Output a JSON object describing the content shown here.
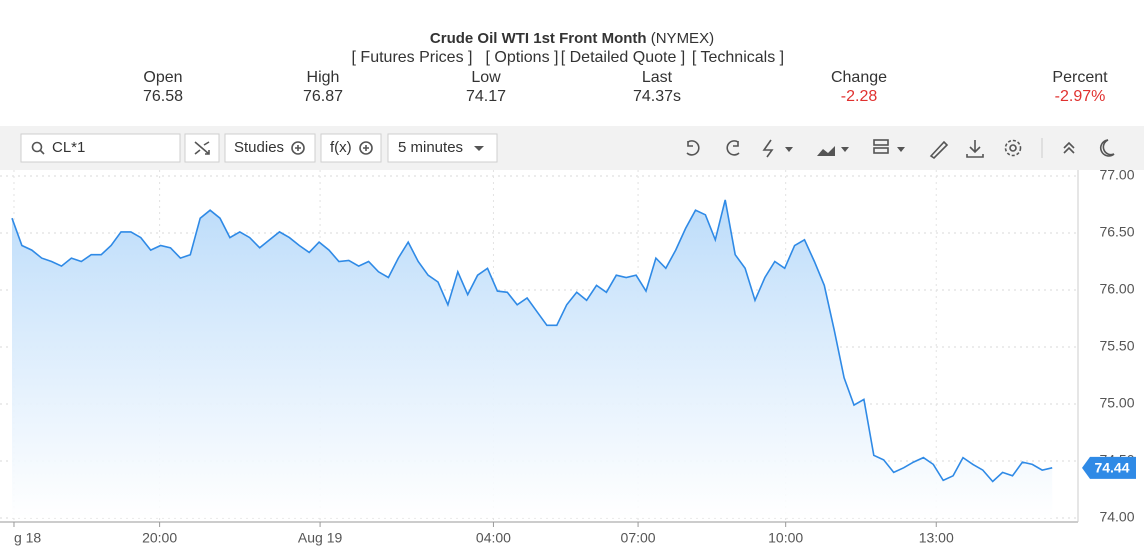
{
  "header": {
    "title": "Crude Oil WTI 1st Front Month",
    "exchange": "(NYMEX)",
    "links": [
      "[ Futures Prices ]",
      "[ Options ]",
      "[ Detailed Quote ]",
      "[ Technicals ]"
    ],
    "quote": {
      "labels": [
        "Open",
        "High",
        "Low",
        "Last",
        "Change",
        "Percent"
      ],
      "values": [
        "76.58",
        "76.87",
        "74.17",
        "74.37s",
        "-2.28",
        "-2.97%"
      ]
    }
  },
  "toolbar": {
    "symbol": "CL*1",
    "studies": "Studies",
    "fx": "f(x)",
    "interval": "5 minutes"
  },
  "chart_data": {
    "type": "area",
    "series": [
      {
        "name": "CL*1",
        "color": "#2f8ae6",
        "values": [
          76.63,
          76.39,
          76.35,
          76.28,
          76.25,
          76.21,
          76.28,
          76.25,
          76.31,
          76.31,
          76.39,
          76.51,
          76.51,
          76.46,
          76.35,
          76.39,
          76.37,
          76.28,
          76.31,
          76.63,
          76.7,
          76.63,
          76.46,
          76.51,
          76.46,
          76.37,
          76.44,
          76.51,
          76.46,
          76.39,
          76.33,
          76.42,
          76.35,
          76.25,
          76.26,
          76.21,
          76.25,
          76.16,
          76.11,
          76.28,
          76.42,
          76.25,
          76.13,
          76.07,
          75.87,
          76.16,
          75.96,
          76.13,
          76.19,
          75.99,
          75.98,
          75.87,
          75.93,
          75.81,
          75.69,
          75.69,
          75.87,
          75.98,
          75.91,
          76.04,
          75.98,
          76.13,
          76.11,
          76.13,
          75.99,
          76.28,
          76.19,
          76.35,
          76.54,
          76.7,
          76.66,
          76.44,
          76.79,
          76.31,
          76.19,
          75.91,
          76.11,
          76.25,
          76.19,
          76.39,
          76.44,
          76.25,
          76.04,
          75.65,
          75.23,
          74.99,
          75.04,
          74.55,
          74.51,
          74.4,
          74.44,
          74.49,
          74.53,
          74.47,
          74.33,
          74.37,
          74.53,
          74.47,
          74.42,
          74.32,
          74.4,
          74.37,
          74.49,
          74.47,
          74.42,
          74.44
        ]
      }
    ],
    "current_value": 74.44,
    "xlim": [
      0,
      106.6
    ],
    "xticks": [
      {
        "value": 0.2,
        "label": "g 18"
      },
      {
        "value": 14.9,
        "label": "20:00"
      },
      {
        "value": 31.1,
        "label": "Aug 19"
      },
      {
        "value": 48.6,
        "label": "04:00"
      },
      {
        "value": 63.2,
        "label": "07:00"
      },
      {
        "value": 78.1,
        "label": "10:00"
      },
      {
        "value": 93.3,
        "label": "13:00"
      }
    ],
    "ylim": [
      74,
      77
    ],
    "yticks": [
      {
        "value": 74,
        "label": "74.00"
      },
      {
        "value": 74.5,
        "label": "74.50"
      },
      {
        "value": 75,
        "label": "75.00"
      },
      {
        "value": 75.5,
        "label": "75.50"
      },
      {
        "value": 76,
        "label": "76.00"
      },
      {
        "value": 76.5,
        "label": "76.50"
      },
      {
        "value": 77,
        "label": "77.00"
      }
    ],
    "grid": true
  }
}
